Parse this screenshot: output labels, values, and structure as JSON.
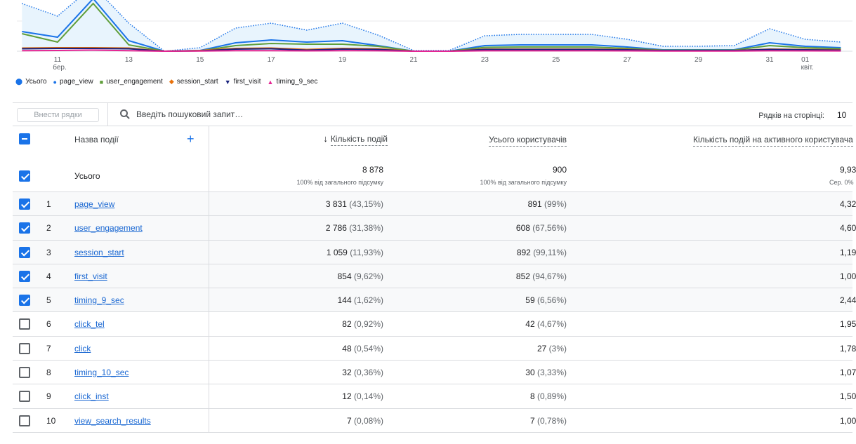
{
  "chart_data": {
    "type": "line",
    "x_ticks": [
      {
        "day": 11,
        "label": "11",
        "sub": "бер."
      },
      {
        "day": 13,
        "label": "13"
      },
      {
        "day": 15,
        "label": "15"
      },
      {
        "day": 17,
        "label": "17"
      },
      {
        "day": 19,
        "label": "19"
      },
      {
        "day": 21,
        "label": "21"
      },
      {
        "day": 23,
        "label": "23"
      },
      {
        "day": 25,
        "label": "25"
      },
      {
        "day": 27,
        "label": "27"
      },
      {
        "day": 29,
        "label": "29"
      },
      {
        "day": 31,
        "label": "31"
      },
      {
        "day": 32,
        "label": "01",
        "sub": "квіт."
      }
    ],
    "x": [
      10,
      11,
      12,
      13,
      14,
      15,
      16,
      17,
      18,
      19,
      20,
      21,
      22,
      23,
      24,
      25,
      26,
      27,
      28,
      29,
      30,
      31,
      32,
      33
    ],
    "series": [
      {
        "name": "Усього",
        "color": "#1a73e8",
        "style": "area-dotted",
        "values": [
          680,
          500,
          930,
          400,
          0,
          50,
          330,
          400,
          300,
          400,
          230,
          10,
          10,
          220,
          240,
          240,
          240,
          170,
          70,
          70,
          80,
          320,
          170,
          130
        ]
      },
      {
        "name": "page_view",
        "color": "#1a73e8",
        "values": [
          280,
          200,
          750,
          150,
          0,
          10,
          120,
          160,
          130,
          150,
          80,
          0,
          0,
          80,
          90,
          90,
          90,
          60,
          20,
          20,
          20,
          120,
          70,
          50
        ]
      },
      {
        "name": "user_engagement",
        "color": "#5f9e3a",
        "values": [
          250,
          130,
          680,
          90,
          0,
          5,
          80,
          110,
          100,
          100,
          70,
          0,
          0,
          55,
          60,
          60,
          60,
          40,
          15,
          15,
          15,
          80,
          50,
          35
        ]
      },
      {
        "name": "session_start",
        "color": "#e8710a",
        "values": [
          45,
          50,
          50,
          45,
          0,
          10,
          40,
          45,
          25,
          40,
          35,
          0,
          0,
          30,
          30,
          30,
          30,
          25,
          10,
          10,
          10,
          30,
          25,
          20
        ]
      },
      {
        "name": "first_visit",
        "color": "#1a237e",
        "values": [
          35,
          40,
          40,
          35,
          0,
          5,
          30,
          35,
          15,
          30,
          25,
          0,
          0,
          25,
          25,
          25,
          25,
          20,
          10,
          10,
          10,
          25,
          20,
          15
        ]
      },
      {
        "name": "timing_9_sec",
        "color": "#e52592",
        "values": [
          8,
          10,
          15,
          8,
          0,
          2,
          8,
          8,
          5,
          8,
          6,
          0,
          0,
          6,
          6,
          6,
          6,
          5,
          3,
          3,
          3,
          6,
          5,
          4
        ]
      }
    ],
    "ylim": [
      0,
      730
    ]
  },
  "toolbar": {
    "add_rows": "Внести рядки",
    "search_placeholder": "Введіть пошуковий запит…",
    "rows_per_page_label": "Рядків на сторінці:",
    "rows_per_page": "10"
  },
  "table": {
    "headers": {
      "name": "Назва події",
      "col1": "Кількість подій",
      "col2": "Усього користувачів",
      "col3": "Кількість подій на активного користувача"
    },
    "total": {
      "label": "Усього",
      "col1": "8 878",
      "col1_sub": "100% від загального підсумку",
      "col2": "900",
      "col2_sub": "100% від загального підсумку",
      "col3": "9,93",
      "col3_sub": "Сер. 0%"
    },
    "rows": [
      {
        "idx": "1",
        "name": "page_view",
        "checked": true,
        "c1": "3 831",
        "c1p": "(43,15%)",
        "c2": "891",
        "c2p": "(99%)",
        "c3": "4,32"
      },
      {
        "idx": "2",
        "name": "user_engagement",
        "checked": true,
        "c1": "2 786",
        "c1p": "(31,38%)",
        "c2": "608",
        "c2p": "(67,56%)",
        "c3": "4,60"
      },
      {
        "idx": "3",
        "name": "session_start",
        "checked": true,
        "c1": "1 059",
        "c1p": "(11,93%)",
        "c2": "892",
        "c2p": "(99,11%)",
        "c3": "1,19"
      },
      {
        "idx": "4",
        "name": "first_visit",
        "checked": true,
        "c1": "854",
        "c1p": "(9,62%)",
        "c2": "852",
        "c2p": "(94,67%)",
        "c3": "1,00"
      },
      {
        "idx": "5",
        "name": "timing_9_sec",
        "checked": true,
        "c1": "144",
        "c1p": "(1,62%)",
        "c2": "59",
        "c2p": "(6,56%)",
        "c3": "2,44"
      },
      {
        "idx": "6",
        "name": "click_tel",
        "checked": false,
        "c1": "82",
        "c1p": "(0,92%)",
        "c2": "42",
        "c2p": "(4,67%)",
        "c3": "1,95"
      },
      {
        "idx": "7",
        "name": "click",
        "checked": false,
        "c1": "48",
        "c1p": "(0,54%)",
        "c2": "27",
        "c2p": "(3%)",
        "c3": "1,78"
      },
      {
        "idx": "8",
        "name": "timing_10_sec",
        "checked": false,
        "c1": "32",
        "c1p": "(0,36%)",
        "c2": "30",
        "c2p": "(3,33%)",
        "c3": "1,07"
      },
      {
        "idx": "9",
        "name": "click_inst",
        "checked": false,
        "c1": "12",
        "c1p": "(0,14%)",
        "c2": "8",
        "c2p": "(0,89%)",
        "c3": "1,50"
      },
      {
        "idx": "10",
        "name": "view_search_results",
        "checked": false,
        "c1": "7",
        "c1p": "(0,08%)",
        "c2": "7",
        "c2p": "(0,78%)",
        "c3": "1,00"
      }
    ]
  }
}
